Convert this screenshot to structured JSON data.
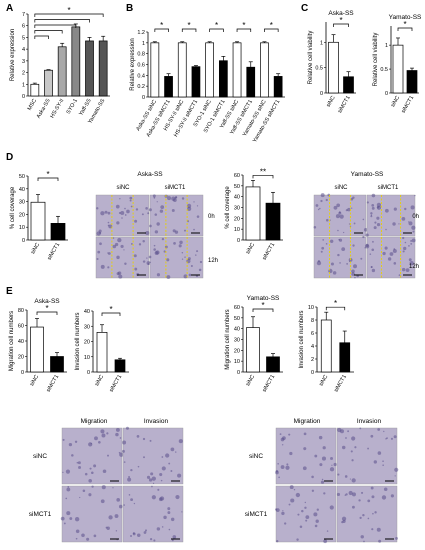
{
  "panel_letters": {
    "A": "A",
    "B": "B",
    "C": "C",
    "D": "D",
    "E": "E"
  },
  "sig_star": "*",
  "sig_double": "**",
  "colors": {
    "black": "#000000",
    "white": "#ffffff",
    "dark_gray": "#555555",
    "mid_gray": "#888888",
    "light_gray": "#c8c8c8",
    "stain": "#b8b0cc",
    "stain_dark": "#5a4f8a",
    "wound_line": "#e8d000"
  },
  "micro_labels": {
    "d_left_title": "Aska-SS",
    "d_right_title": "Yamato-SS",
    "d_left_cols": [
      "siNC",
      "siMCT1"
    ],
    "d_right_cols": [
      "siNC",
      "siMCT1"
    ],
    "d_rows": [
      "0h",
      "12h"
    ],
    "e_left_cols": [
      "Migration",
      "Invasion"
    ],
    "e_right_cols": [
      "Migration",
      "Invasion"
    ],
    "e_rows": [
      "siNC",
      "siMCT1"
    ]
  },
  "chart_data": [
    {
      "id": "A",
      "type": "bar",
      "title": "",
      "ylabel": "Relative expression",
      "ylim": [
        0,
        7
      ],
      "yticks": [
        0,
        1,
        2,
        3,
        4,
        5,
        6,
        7
      ],
      "categories": [
        "MSC",
        "Aska-SS",
        "HS-SY-II",
        "SYO-1",
        "Yaff-SS",
        "Yamato-SS"
      ],
      "values": [
        1.0,
        2.2,
        4.2,
        5.9,
        4.7,
        4.7
      ],
      "errors": [
        0.1,
        0.05,
        0.3,
        0.25,
        0.3,
        0.4
      ],
      "fills": [
        "white",
        "light",
        "mid",
        "gray",
        "dark",
        "dark"
      ],
      "sig_pairs": [
        [
          0,
          5
        ],
        [
          0,
          4
        ],
        [
          0,
          3
        ],
        [
          0,
          2
        ],
        [
          0,
          1
        ]
      ]
    },
    {
      "id": "B",
      "type": "bar",
      "title": "",
      "ylabel": "Relative expression",
      "ylim": [
        0,
        1.2
      ],
      "yticks": [
        0,
        0.2,
        0.4,
        0.6,
        0.8,
        1.0,
        1.2
      ],
      "categories": [
        "Aska-SS siNC",
        "Aska-SS siMCT1",
        "HS-SY-II siNC",
        "HS-SY-II siMCT1",
        "SYO-1 siNC",
        "SYO-1 siMCT1",
        "Yaff-SS siNC",
        "Yaff-SS siMCT1",
        "Yamato-SS siNC",
        "Yamato-SS siMCT1"
      ],
      "values": [
        1.0,
        0.38,
        1.0,
        0.56,
        1.0,
        0.67,
        1.0,
        0.55,
        1.0,
        0.38
      ],
      "errors": [
        0.02,
        0.05,
        0.02,
        0.02,
        0.02,
        0.08,
        0.02,
        0.1,
        0.02,
        0.05
      ],
      "fills": [
        "white",
        "black",
        "white",
        "black",
        "white",
        "black",
        "white",
        "black",
        "white",
        "black"
      ],
      "sig_pairs": [
        [
          0,
          1
        ],
        [
          2,
          3
        ],
        [
          4,
          5
        ],
        [
          6,
          7
        ],
        [
          8,
          9
        ]
      ]
    },
    {
      "id": "C1",
      "type": "bar",
      "title": "Aska-SS",
      "ylabel": "Relative cell viability",
      "ylim": [
        0,
        1.4
      ],
      "yticks": [
        0,
        0.5,
        1.0
      ],
      "categories": [
        "siNC",
        "siMCT1"
      ],
      "values": [
        1.0,
        0.32
      ],
      "errors": [
        0.15,
        0.1
      ],
      "fills": [
        "white",
        "black"
      ],
      "sig_pairs": [
        [
          0,
          1
        ]
      ]
    },
    {
      "id": "C2",
      "type": "bar",
      "title": "Yamato-SS",
      "ylabel": "Relative cell viability",
      "ylim": [
        0,
        1.4
      ],
      "yticks": [
        0,
        0.5,
        1.0
      ],
      "categories": [
        "siNC",
        "siMCT1"
      ],
      "values": [
        1.0,
        0.47
      ],
      "errors": [
        0.15,
        0.05
      ],
      "fills": [
        "white",
        "black"
      ],
      "sig_pairs": [
        [
          0,
          1
        ]
      ]
    },
    {
      "id": "D1",
      "type": "bar",
      "title": "",
      "ylabel": "% cell coverage",
      "ylim": [
        0,
        50
      ],
      "yticks": [
        0,
        10,
        20,
        30,
        40,
        50
      ],
      "categories": [
        "siNC",
        "siMCT1"
      ],
      "values": [
        29.5,
        13.0
      ],
      "errors": [
        6.0,
        5.5
      ],
      "fills": [
        "white",
        "black"
      ],
      "sig_pairs": [
        [
          0,
          1
        ]
      ]
    },
    {
      "id": "D2",
      "type": "bar",
      "title": "",
      "ylabel": "% cell coverage",
      "ylim": [
        0,
        60
      ],
      "yticks": [
        0,
        10,
        20,
        30,
        40,
        50,
        60
      ],
      "categories": [
        "siNC",
        "siMCT1"
      ],
      "values": [
        49.0,
        34.0
      ],
      "errors": [
        6.0,
        10.0
      ],
      "fills": [
        "white",
        "black"
      ],
      "sig_pairs": [
        [
          0,
          1
        ]
      ],
      "sig": "**"
    },
    {
      "id": "E1",
      "type": "bar",
      "title": "Aska-SS",
      "ylabel": "Migration cell numbers",
      "ylim": [
        0,
        80
      ],
      "yticks": [
        0,
        20,
        40,
        60,
        80
      ],
      "categories": [
        "siNC",
        "siMCT1"
      ],
      "values": [
        58,
        20
      ],
      "errors": [
        11,
        5
      ],
      "fills": [
        "white",
        "black"
      ],
      "sig_pairs": [
        [
          0,
          1
        ]
      ]
    },
    {
      "id": "E2",
      "type": "bar",
      "title": "",
      "ylabel": "Invasion cell numbers",
      "ylim": [
        0,
        40
      ],
      "yticks": [
        0,
        10,
        20,
        30,
        40
      ],
      "categories": [
        "siNC",
        "siMCT1"
      ],
      "values": [
        26,
        8
      ],
      "errors": [
        5,
        1
      ],
      "fills": [
        "white",
        "black"
      ],
      "sig_pairs": [
        [
          0,
          1
        ]
      ]
    },
    {
      "id": "E3",
      "type": "bar",
      "title": "Yamato-SS",
      "ylabel": "Migration cell numbers",
      "ylim": [
        0,
        60
      ],
      "yticks": [
        0,
        10,
        20,
        30,
        40,
        50,
        60
      ],
      "categories": [
        "siNC",
        "siMCT1"
      ],
      "values": [
        41,
        14
      ],
      "errors": [
        10,
        3
      ],
      "fills": [
        "white",
        "black"
      ],
      "sig_pairs": [
        [
          0,
          1
        ]
      ]
    },
    {
      "id": "E4",
      "type": "bar",
      "title": "",
      "ylabel": "Invasion cell numbers",
      "ylim": [
        0,
        10
      ],
      "yticks": [
        0,
        2,
        4,
        6,
        8,
        10
      ],
      "categories": [
        "siNC",
        "siMCT1"
      ],
      "values": [
        8.0,
        4.5
      ],
      "errors": [
        1.2,
        1.8
      ],
      "fills": [
        "white",
        "black"
      ],
      "sig_pairs": [
        [
          0,
          1
        ]
      ]
    }
  ]
}
